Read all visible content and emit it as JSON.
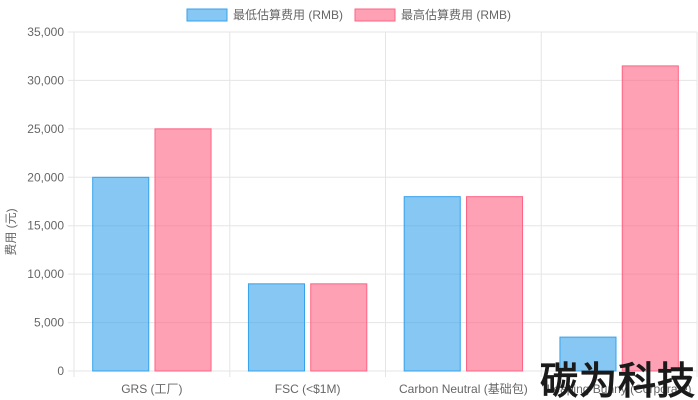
{
  "chart_data": {
    "type": "bar",
    "categories": [
      "GRS (工厂)",
      "FSC (<$1M)",
      "Carbon Neutral (基础包)",
      "Leaping Bunny (Corporate)"
    ],
    "series": [
      {
        "name": "最低估算费用 (RMB)",
        "values": [
          20000,
          9000,
          18000,
          3500
        ],
        "color": "#36a2eb"
      },
      {
        "name": "最高估算费用 (RMB)",
        "values": [
          25000,
          9000,
          18000,
          31500
        ],
        "color": "#ff6384"
      }
    ],
    "ylabel": "费用 (元)",
    "xlabel": "",
    "ylim": [
      0,
      35000
    ],
    "yticks": [
      0,
      5000,
      10000,
      15000,
      20000,
      25000,
      30000,
      35000
    ],
    "ytick_labels": [
      "0",
      "5,000",
      "10,000",
      "15,000",
      "20,000",
      "25,000",
      "30,000",
      "35,000"
    ],
    "grid": true,
    "legend_position": "top-center"
  },
  "watermark": {
    "text": "碳为科技"
  }
}
